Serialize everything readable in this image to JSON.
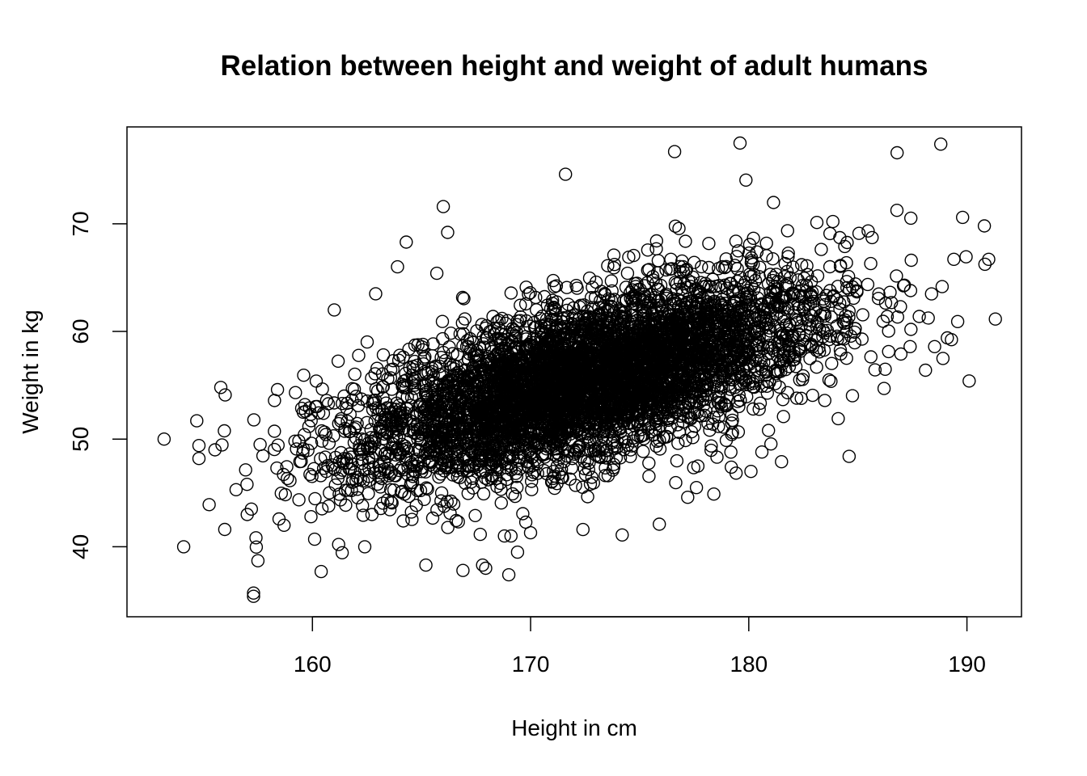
{
  "chart_data": {
    "type": "scatter",
    "title": "Relation between height and weight of adult humans",
    "xlabel": "Height in cm",
    "ylabel": "Weight in kg",
    "xlim": [
      151.5,
      192.5
    ],
    "ylim": [
      33.5,
      79
    ],
    "x_ticks": [
      160,
      170,
      180,
      190
    ],
    "y_ticks": [
      40,
      50,
      60,
      70
    ],
    "grid": false,
    "legend": "none",
    "marker": "open-circle",
    "color": "#000000",
    "series": [
      {
        "x": [
          153.2,
          154.1,
          154.7,
          154.8,
          154.8,
          155.8,
          156.0,
          156.5,
          157.0,
          157.2,
          157.3,
          157.3,
          157.5,
          157.6,
          158.4,
          158.7,
          160.1,
          160.4,
          161.0,
          162.4,
          162.9,
          163.9,
          164.3,
          165.2,
          165.7,
          166.0,
          166.2,
          166.9,
          167.8,
          168.8,
          169.0,
          169.1,
          169.4,
          170.0,
          171.6,
          172.4,
          174.2,
          175.9,
          176.6,
          177.2,
          177.6,
          178.4,
          179.2,
          179.6,
          180.1,
          180.6,
          181.5,
          184.1,
          184.6,
          186.2,
          186.8,
          188.1,
          188.8,
          188.9,
          189.1,
          189.4,
          189.8,
          190.1,
          190.8,
          191.0
        ],
        "y": [
          50.0,
          40.0,
          51.7,
          49.4,
          48.2,
          54.8,
          54.1,
          45.3,
          45.8,
          43.5,
          35.7,
          35.4,
          38.7,
          49.5,
          54.6,
          42.0,
          40.7,
          37.7,
          62.0,
          40.0,
          63.5,
          66.0,
          68.3,
          38.3,
          65.4,
          71.6,
          69.2,
          37.8,
          38.3,
          41.0,
          37.4,
          41.0,
          39.5,
          41.3,
          74.6,
          41.6,
          41.1,
          42.1,
          76.7,
          44.6,
          45.5,
          44.9,
          47.4,
          77.5,
          47.0,
          48.8,
          47.9,
          51.9,
          48.4,
          54.7,
          76.6,
          56.4,
          77.4,
          57.5,
          59.4,
          66.7,
          70.6,
          55.4,
          69.8,
          66.7
        ]
      }
    ]
  }
}
